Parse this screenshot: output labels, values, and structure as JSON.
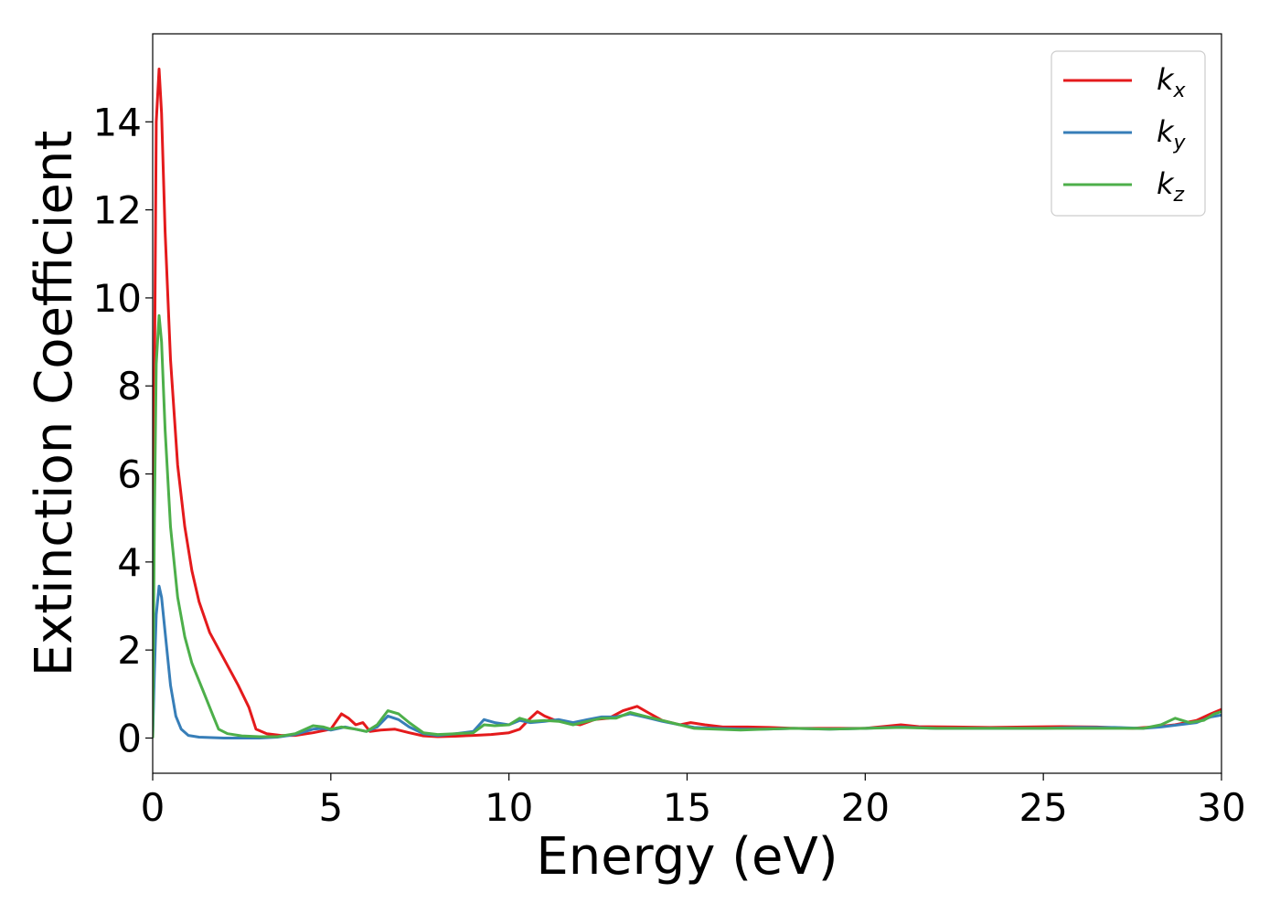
{
  "chart_data": {
    "type": "line",
    "xlabel": "Energy (eV)",
    "ylabel": "Extinction Coefficient",
    "xlim": [
      0,
      30
    ],
    "ylim": [
      -0.8,
      16.0
    ],
    "xticks": [
      "0",
      "5",
      "10",
      "15",
      "20",
      "25",
      "30"
    ],
    "yticks": [
      "0",
      "2",
      "4",
      "6",
      "8",
      "10",
      "12",
      "14"
    ],
    "grid": false,
    "legend_position": "top-right",
    "series": [
      {
        "name": "k",
        "sub": "x",
        "color": "#e41a1c",
        "points": [
          [
            0,
            0
          ],
          [
            0.05,
            8
          ],
          [
            0.1,
            14
          ],
          [
            0.18,
            15.2
          ],
          [
            0.25,
            14.2
          ],
          [
            0.35,
            11.5
          ],
          [
            0.5,
            8.6
          ],
          [
            0.7,
            6.2
          ],
          [
            0.9,
            4.8
          ],
          [
            1.1,
            3.8
          ],
          [
            1.3,
            3.1
          ],
          [
            1.6,
            2.4
          ],
          [
            2.0,
            1.8
          ],
          [
            2.4,
            1.2
          ],
          [
            2.7,
            0.7
          ],
          [
            2.9,
            0.2
          ],
          [
            3.2,
            0.1
          ],
          [
            3.6,
            0.06
          ],
          [
            4.0,
            0.06
          ],
          [
            4.5,
            0.12
          ],
          [
            5.0,
            0.2
          ],
          [
            5.3,
            0.55
          ],
          [
            5.5,
            0.45
          ],
          [
            5.7,
            0.3
          ],
          [
            5.9,
            0.35
          ],
          [
            6.1,
            0.15
          ],
          [
            6.4,
            0.18
          ],
          [
            6.8,
            0.2
          ],
          [
            7.2,
            0.12
          ],
          [
            7.6,
            0.05
          ],
          [
            8.0,
            0.03
          ],
          [
            8.5,
            0.04
          ],
          [
            9.0,
            0.06
          ],
          [
            9.5,
            0.08
          ],
          [
            10.0,
            0.12
          ],
          [
            10.3,
            0.2
          ],
          [
            10.6,
            0.45
          ],
          [
            10.8,
            0.6
          ],
          [
            11.0,
            0.5
          ],
          [
            11.3,
            0.4
          ],
          [
            11.6,
            0.35
          ],
          [
            12.0,
            0.3
          ],
          [
            12.4,
            0.42
          ],
          [
            12.8,
            0.45
          ],
          [
            13.2,
            0.62
          ],
          [
            13.6,
            0.72
          ],
          [
            13.9,
            0.58
          ],
          [
            14.3,
            0.4
          ],
          [
            14.8,
            0.3
          ],
          [
            15.1,
            0.35
          ],
          [
            15.5,
            0.3
          ],
          [
            16.0,
            0.25
          ],
          [
            16.7,
            0.25
          ],
          [
            17.3,
            0.24
          ],
          [
            18.0,
            0.22
          ],
          [
            19.0,
            0.22
          ],
          [
            20.0,
            0.22
          ],
          [
            21.0,
            0.3
          ],
          [
            21.5,
            0.26
          ],
          [
            22.5,
            0.25
          ],
          [
            23.5,
            0.24
          ],
          [
            24.5,
            0.25
          ],
          [
            25.5,
            0.26
          ],
          [
            26.5,
            0.25
          ],
          [
            27.5,
            0.22
          ],
          [
            28.2,
            0.26
          ],
          [
            28.7,
            0.3
          ],
          [
            29.3,
            0.4
          ],
          [
            29.7,
            0.55
          ],
          [
            30.0,
            0.65
          ]
        ]
      },
      {
        "name": "k",
        "sub": "y",
        "color": "#377eb8",
        "points": [
          [
            0,
            0
          ],
          [
            0.05,
            1.5
          ],
          [
            0.1,
            2.8
          ],
          [
            0.18,
            3.45
          ],
          [
            0.25,
            3.2
          ],
          [
            0.35,
            2.4
          ],
          [
            0.5,
            1.2
          ],
          [
            0.65,
            0.5
          ],
          [
            0.8,
            0.2
          ],
          [
            1.0,
            0.06
          ],
          [
            1.3,
            0.02
          ],
          [
            2.0,
            0.0
          ],
          [
            3.0,
            0.0
          ],
          [
            3.5,
            0.02
          ],
          [
            4.0,
            0.08
          ],
          [
            4.5,
            0.2
          ],
          [
            4.8,
            0.22
          ],
          [
            5.0,
            0.18
          ],
          [
            5.4,
            0.25
          ],
          [
            5.7,
            0.2
          ],
          [
            6.0,
            0.15
          ],
          [
            6.3,
            0.25
          ],
          [
            6.6,
            0.5
          ],
          [
            6.9,
            0.42
          ],
          [
            7.2,
            0.25
          ],
          [
            7.6,
            0.1
          ],
          [
            8.0,
            0.06
          ],
          [
            8.5,
            0.1
          ],
          [
            9.0,
            0.15
          ],
          [
            9.3,
            0.42
          ],
          [
            9.6,
            0.35
          ],
          [
            10.0,
            0.3
          ],
          [
            10.3,
            0.4
          ],
          [
            10.6,
            0.35
          ],
          [
            11.0,
            0.38
          ],
          [
            11.4,
            0.42
          ],
          [
            11.8,
            0.35
          ],
          [
            12.2,
            0.42
          ],
          [
            12.6,
            0.48
          ],
          [
            13.0,
            0.48
          ],
          [
            13.4,
            0.55
          ],
          [
            13.8,
            0.48
          ],
          [
            14.3,
            0.38
          ],
          [
            14.8,
            0.3
          ],
          [
            15.2,
            0.24
          ],
          [
            15.8,
            0.22
          ],
          [
            16.5,
            0.2
          ],
          [
            17.2,
            0.2
          ],
          [
            18.0,
            0.22
          ],
          [
            19.0,
            0.2
          ],
          [
            20.0,
            0.22
          ],
          [
            21.0,
            0.25
          ],
          [
            22.0,
            0.22
          ],
          [
            23.0,
            0.22
          ],
          [
            24.0,
            0.22
          ],
          [
            25.0,
            0.22
          ],
          [
            26.0,
            0.24
          ],
          [
            27.0,
            0.24
          ],
          [
            27.8,
            0.22
          ],
          [
            28.3,
            0.25
          ],
          [
            28.8,
            0.3
          ],
          [
            29.3,
            0.35
          ],
          [
            29.7,
            0.48
          ],
          [
            30.0,
            0.52
          ]
        ]
      },
      {
        "name": "k",
        "sub": "z",
        "color": "#4daf4a",
        "points": [
          [
            0,
            0
          ],
          [
            0.05,
            5
          ],
          [
            0.1,
            8.5
          ],
          [
            0.18,
            9.6
          ],
          [
            0.25,
            9.0
          ],
          [
            0.35,
            7.0
          ],
          [
            0.5,
            4.8
          ],
          [
            0.7,
            3.2
          ],
          [
            0.9,
            2.3
          ],
          [
            1.1,
            1.7
          ],
          [
            1.4,
            1.1
          ],
          [
            1.7,
            0.5
          ],
          [
            1.85,
            0.2
          ],
          [
            2.1,
            0.1
          ],
          [
            2.5,
            0.05
          ],
          [
            3.0,
            0.03
          ],
          [
            3.5,
            0.03
          ],
          [
            4.0,
            0.1
          ],
          [
            4.5,
            0.28
          ],
          [
            4.8,
            0.25
          ],
          [
            5.0,
            0.2
          ],
          [
            5.3,
            0.25
          ],
          [
            5.7,
            0.2
          ],
          [
            6.0,
            0.15
          ],
          [
            6.3,
            0.3
          ],
          [
            6.6,
            0.62
          ],
          [
            6.9,
            0.55
          ],
          [
            7.2,
            0.35
          ],
          [
            7.6,
            0.12
          ],
          [
            8.0,
            0.08
          ],
          [
            8.5,
            0.1
          ],
          [
            9.0,
            0.12
          ],
          [
            9.3,
            0.3
          ],
          [
            9.6,
            0.28
          ],
          [
            10.0,
            0.3
          ],
          [
            10.3,
            0.45
          ],
          [
            10.6,
            0.38
          ],
          [
            11.0,
            0.4
          ],
          [
            11.4,
            0.38
          ],
          [
            11.8,
            0.3
          ],
          [
            12.2,
            0.38
          ],
          [
            12.6,
            0.45
          ],
          [
            13.0,
            0.45
          ],
          [
            13.4,
            0.58
          ],
          [
            13.8,
            0.5
          ],
          [
            14.3,
            0.4
          ],
          [
            14.8,
            0.3
          ],
          [
            15.2,
            0.22
          ],
          [
            15.8,
            0.2
          ],
          [
            16.5,
            0.18
          ],
          [
            17.2,
            0.2
          ],
          [
            18.0,
            0.22
          ],
          [
            19.0,
            0.2
          ],
          [
            20.0,
            0.22
          ],
          [
            21.0,
            0.24
          ],
          [
            22.0,
            0.22
          ],
          [
            23.0,
            0.22
          ],
          [
            24.0,
            0.22
          ],
          [
            25.0,
            0.22
          ],
          [
            26.0,
            0.22
          ],
          [
            27.0,
            0.22
          ],
          [
            27.8,
            0.22
          ],
          [
            28.3,
            0.3
          ],
          [
            28.7,
            0.45
          ],
          [
            29.1,
            0.35
          ],
          [
            29.5,
            0.4
          ],
          [
            29.8,
            0.55
          ],
          [
            30.0,
            0.6
          ]
        ]
      }
    ]
  }
}
